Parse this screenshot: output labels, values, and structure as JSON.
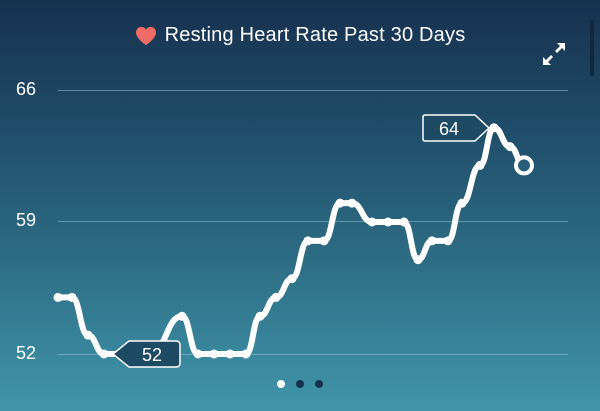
{
  "header": {
    "title": "Resting Heart Rate Past 30 Days",
    "icon": "heart-icon",
    "heart_color": "#ee6b66"
  },
  "controls": {
    "expand_icon": "expand-arrows-icon"
  },
  "pagination": {
    "pages": 3,
    "active": 0
  },
  "chart_data": {
    "type": "line",
    "title": "Resting Heart Rate Past 30 Days",
    "xlabel": "",
    "ylabel": "",
    "y_ticks": [
      66,
      59,
      52
    ],
    "ylim": [
      52,
      66
    ],
    "grid": true,
    "legend": null,
    "series": [
      {
        "name": "Resting Heart Rate",
        "values": [
          55,
          55,
          53,
          52,
          52,
          52,
          52,
          54,
          52,
          52,
          52,
          52,
          54,
          55,
          56,
          58,
          58,
          60,
          60,
          59,
          59,
          59,
          57,
          58,
          58,
          60,
          62,
          64,
          63,
          62
        ]
      }
    ],
    "annotations": [
      {
        "label": "52",
        "type": "min"
      },
      {
        "label": "64",
        "type": "max"
      }
    ]
  },
  "labels": {
    "min_label": "52",
    "max_label": "64",
    "ytick_top": "66",
    "ytick_mid": "59",
    "ytick_bottom": "52"
  }
}
